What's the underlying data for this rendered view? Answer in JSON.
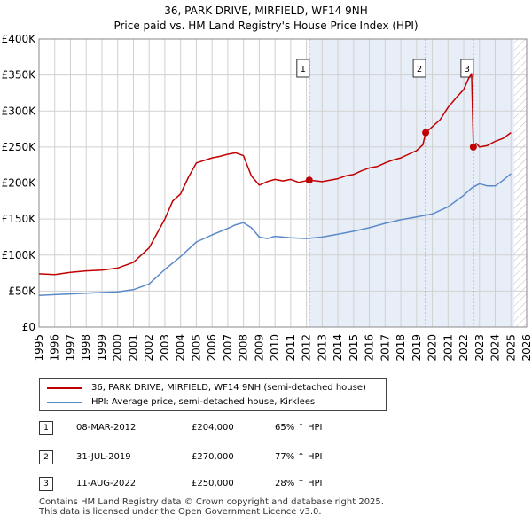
{
  "colors": {
    "property_line": "#c00000",
    "hpi_line": "#5b8ac8",
    "shade": "#e8eef8",
    "grid": "#d0d0d0",
    "marker_dash": "#e06060"
  },
  "chart_data": {
    "type": "line",
    "title": "36, PARK DRIVE, MIRFIELD, WF14 9NH",
    "subtitle": "Price paid vs. HM Land Registry's House Price Index (HPI)",
    "xlim": [
      1995,
      2026
    ],
    "ylim": [
      0,
      400000
    ],
    "x_ticks": [
      "1995",
      "1996",
      "1997",
      "1998",
      "1999",
      "2000",
      "2001",
      "2002",
      "2003",
      "2004",
      "2005",
      "2006",
      "2007",
      "2008",
      "2009",
      "2010",
      "2011",
      "2012",
      "2013",
      "2014",
      "2015",
      "2016",
      "2017",
      "2018",
      "2019",
      "2020",
      "2021",
      "2022",
      "2023",
      "2024",
      "2025",
      "2026"
    ],
    "y_ticks": [
      {
        "value": 0,
        "label": "£0"
      },
      {
        "value": 50000,
        "label": "£50K"
      },
      {
        "value": 100000,
        "label": "£100K"
      },
      {
        "value": 150000,
        "label": "£150K"
      },
      {
        "value": 200000,
        "label": "£200K"
      },
      {
        "value": 250000,
        "label": "£250K"
      },
      {
        "value": 300000,
        "label": "£300K"
      },
      {
        "value": 350000,
        "label": "£350K"
      },
      {
        "value": 400000,
        "label": "£400K"
      }
    ],
    "shaded_range": [
      2012.18,
      2025.2
    ],
    "future_hatch_from": 2025.2,
    "series": [
      {
        "name": "36, PARK DRIVE, MIRFIELD, WF14 9NH (semi-detached house)",
        "color": "#c00000",
        "x": [
          1995,
          1996,
          1997,
          1998,
          1999,
          2000,
          2001,
          2002,
          2003,
          2003.5,
          2004,
          2004.5,
          2005,
          2006,
          2006.5,
          2007,
          2007.5,
          2008,
          2008.5,
          2009,
          2009.5,
          2010,
          2010.5,
          2011,
          2011.5,
          2012.18,
          2013,
          2014,
          2014.5,
          2015,
          2015.5,
          2016,
          2016.5,
          2017,
          2017.5,
          2018,
          2018.5,
          2019,
          2019.4,
          2019.58,
          2020,
          2020.5,
          2021,
          2021.5,
          2022,
          2022.3,
          2022.5,
          2022.61,
          2022.8,
          2023,
          2023.5,
          2024,
          2024.5,
          2025
        ],
        "y": [
          74000,
          73000,
          76000,
          78000,
          79000,
          82000,
          90000,
          110000,
          150000,
          175000,
          185000,
          208000,
          228000,
          235000,
          237000,
          240000,
          242000,
          238000,
          210000,
          197000,
          202000,
          205000,
          203000,
          205000,
          201000,
          204000,
          202000,
          206000,
          210000,
          212000,
          217000,
          221000,
          223000,
          228000,
          232000,
          235000,
          240000,
          245000,
          253000,
          270000,
          278000,
          288000,
          305000,
          318000,
          330000,
          345000,
          352000,
          250000,
          255000,
          250000,
          252000,
          258000,
          262000,
          270000
        ]
      },
      {
        "name": "HPI: Average price, semi-detached house, Kirklees",
        "color": "#5b8ac8",
        "x": [
          1995,
          1996,
          1997,
          1998,
          1999,
          2000,
          2001,
          2002,
          2003,
          2004,
          2005,
          2006,
          2007,
          2007.5,
          2008,
          2008.5,
          2009,
          2009.5,
          2010,
          2011,
          2012,
          2013,
          2014,
          2015,
          2016,
          2017,
          2018,
          2019,
          2020,
          2021,
          2022,
          2022.5,
          2023,
          2023.5,
          2024,
          2024.5,
          2025
        ],
        "y": [
          44000,
          45000,
          46000,
          47000,
          48000,
          49000,
          52000,
          60000,
          80000,
          98000,
          118000,
          128000,
          137000,
          142000,
          145000,
          138000,
          125000,
          123000,
          126000,
          124000,
          123000,
          125000,
          129000,
          133000,
          138000,
          144000,
          149000,
          153000,
          157000,
          167000,
          183000,
          193000,
          199000,
          196000,
          196000,
          204000,
          213000
        ]
      }
    ],
    "sale_markers": [
      {
        "label": "1",
        "x": 2012.18,
        "y": 204000
      },
      {
        "label": "2",
        "x": 2019.58,
        "y": 270000
      },
      {
        "label": "3",
        "x": 2022.61,
        "y": 250000
      }
    ]
  },
  "legend": {
    "property": "36, PARK DRIVE, MIRFIELD, WF14 9NH (semi-detached house)",
    "hpi": "HPI: Average price, semi-detached house, Kirklees"
  },
  "sales": [
    {
      "num": "1",
      "date": "08-MAR-2012",
      "price": "£204,000",
      "hpi": "65% ↑ HPI"
    },
    {
      "num": "2",
      "date": "31-JUL-2019",
      "price": "£270,000",
      "hpi": "77% ↑ HPI"
    },
    {
      "num": "3",
      "date": "11-AUG-2022",
      "price": "£250,000",
      "hpi": "28% ↑ HPI"
    }
  ],
  "footer": {
    "line1": "Contains HM Land Registry data © Crown copyright and database right 2025.",
    "line2": "This data is licensed under the Open Government Licence v3.0."
  }
}
